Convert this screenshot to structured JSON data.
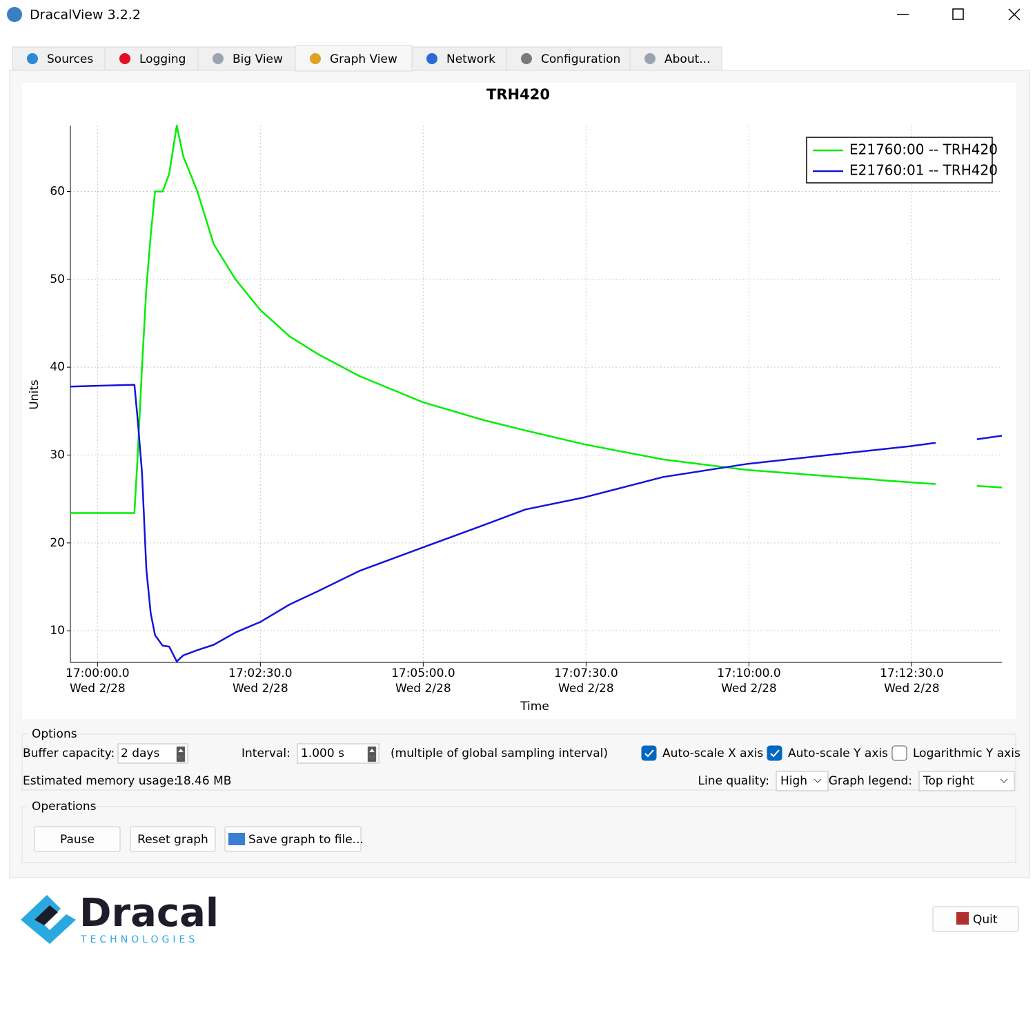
{
  "window": {
    "title": "DracalView 3.2.2"
  },
  "tabs": [
    "Sources",
    "Logging",
    "Big View",
    "Graph View",
    "Network",
    "Configuration",
    "About..."
  ],
  "chart_data": {
    "type": "line",
    "title": "TRH420",
    "x_label": "Time",
    "y_label": "Units",
    "x": [
      "16:59:35",
      "17:00:34",
      "17:00:37",
      "17:00:41",
      "17:00:45",
      "17:00:49",
      "17:00:53",
      "17:01:00",
      "17:01:06",
      "17:01:13",
      "17:01:19",
      "17:01:32",
      "17:01:47",
      "17:02:07",
      "17:02:30",
      "17:02:57",
      "17:03:23",
      "17:04:01",
      "17:05:00",
      "17:05:55",
      "17:06:34",
      "17:07:29",
      "17:08:41",
      "17:09:59",
      "17:11:13",
      "17:12:28",
      "17:12:52",
      "17:13:10",
      "17:13:30",
      "17:13:53"
    ],
    "series": [
      {
        "name": "E21760:00 -- TRH420",
        "color": "#00ee00",
        "values": [
          23.4,
          23.4,
          30,
          40,
          49,
          55,
          60,
          60,
          62,
          67.5,
          64,
          60,
          54,
          50,
          46.5,
          43.5,
          41.5,
          39,
          36,
          34,
          32.8,
          31.2,
          29.5,
          28.3,
          27.6,
          26.9,
          26.7,
          null,
          26.5,
          26.3
        ]
      },
      {
        "name": "E21760:01 -- TRH420",
        "color": "#1414dc",
        "values": [
          37.8,
          38,
          34,
          28,
          17,
          12,
          9.5,
          8.3,
          8.2,
          6.5,
          7.2,
          7.8,
          8.4,
          9.8,
          11,
          13,
          14.5,
          16.8,
          19.5,
          22,
          23.8,
          25.2,
          27.5,
          29,
          30,
          31,
          31.4,
          null,
          31.8,
          32.2
        ]
      }
    ],
    "xlim": [
      "16:59:35",
      "17:13:53"
    ],
    "xticks": [
      "17:00:00.0",
      "17:02:30.0",
      "17:05:00.0",
      "17:07:30.0",
      "17:10:00.0",
      "17:12:30.0"
    ],
    "xtick_date": "Wed 2/28",
    "ylim": [
      6.4,
      67.5
    ],
    "yticks": [
      10,
      20,
      30,
      40,
      50,
      60
    ],
    "grid": true,
    "log_y": false,
    "legend": "top-right"
  },
  "options": {
    "title": "Options",
    "buffer_label": "Buffer capacity:",
    "buffer_value": "2 days",
    "interval_label": "Interval:",
    "interval_value": "1.000 s",
    "interval_note": "(multiple of global sampling interval)",
    "checkboxes": [
      {
        "label": "Auto-scale X axis",
        "checked": true
      },
      {
        "label": "Auto-scale Y axis",
        "checked": true
      },
      {
        "label": "Logarithmic Y axis",
        "checked": false
      }
    ],
    "memory_label": "Estimated memory usage:",
    "memory_value": "18.46 MB",
    "quality_label": "Line quality:",
    "quality_value": "High",
    "legend_label": "Graph legend:",
    "legend_value": "Top right"
  },
  "operations": {
    "title": "Operations",
    "buttons": [
      "Pause",
      "Reset graph",
      "Save graph to file..."
    ]
  },
  "logo": {
    "name": "Dracal",
    "tagline": "TECHNOLOGIES"
  },
  "quit": "Quit"
}
